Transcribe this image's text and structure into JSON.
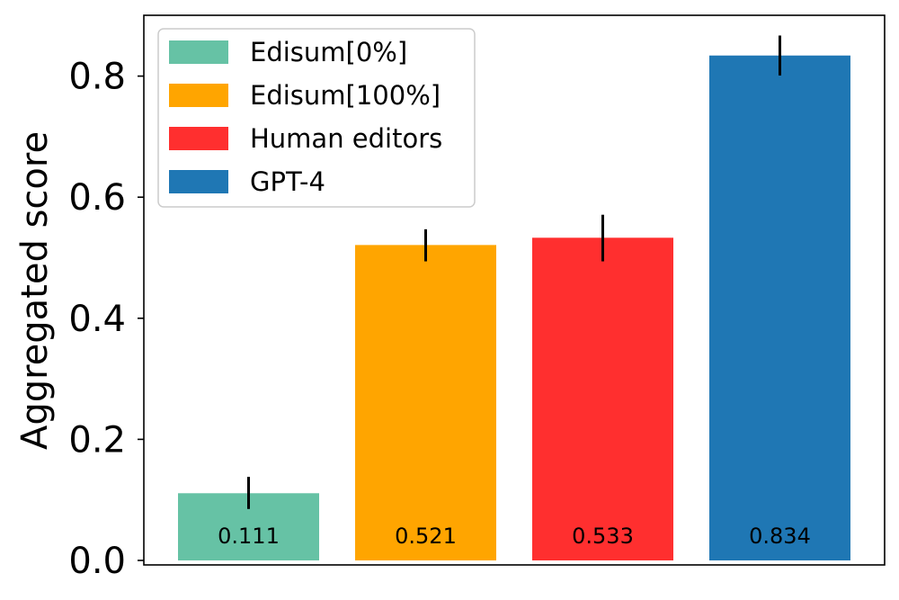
{
  "chart_data": {
    "type": "bar",
    "ylabel": "Aggregated score",
    "ylim": [
      0,
      0.9
    ],
    "yticks": [
      "0.0",
      "0.2",
      "0.4",
      "0.6",
      "0.8"
    ],
    "legend_position": "top-left",
    "series": [
      {
        "name": "Edisum[0%]",
        "value": 0.111,
        "label": "0.111",
        "err_low": 0.085,
        "err_high": 0.138,
        "color": "#66c2a5"
      },
      {
        "name": "Edisum[100%]",
        "value": 0.521,
        "label": "0.521",
        "err_low": 0.494,
        "err_high": 0.547,
        "color": "#ffa500"
      },
      {
        "name": "Human editors",
        "value": 0.533,
        "label": "0.533",
        "err_low": 0.494,
        "err_high": 0.571,
        "color": "#ff2f2f"
      },
      {
        "name": "GPT-4",
        "value": 0.834,
        "label": "0.834",
        "err_low": 0.801,
        "err_high": 0.867,
        "color": "#1f77b4"
      }
    ]
  }
}
